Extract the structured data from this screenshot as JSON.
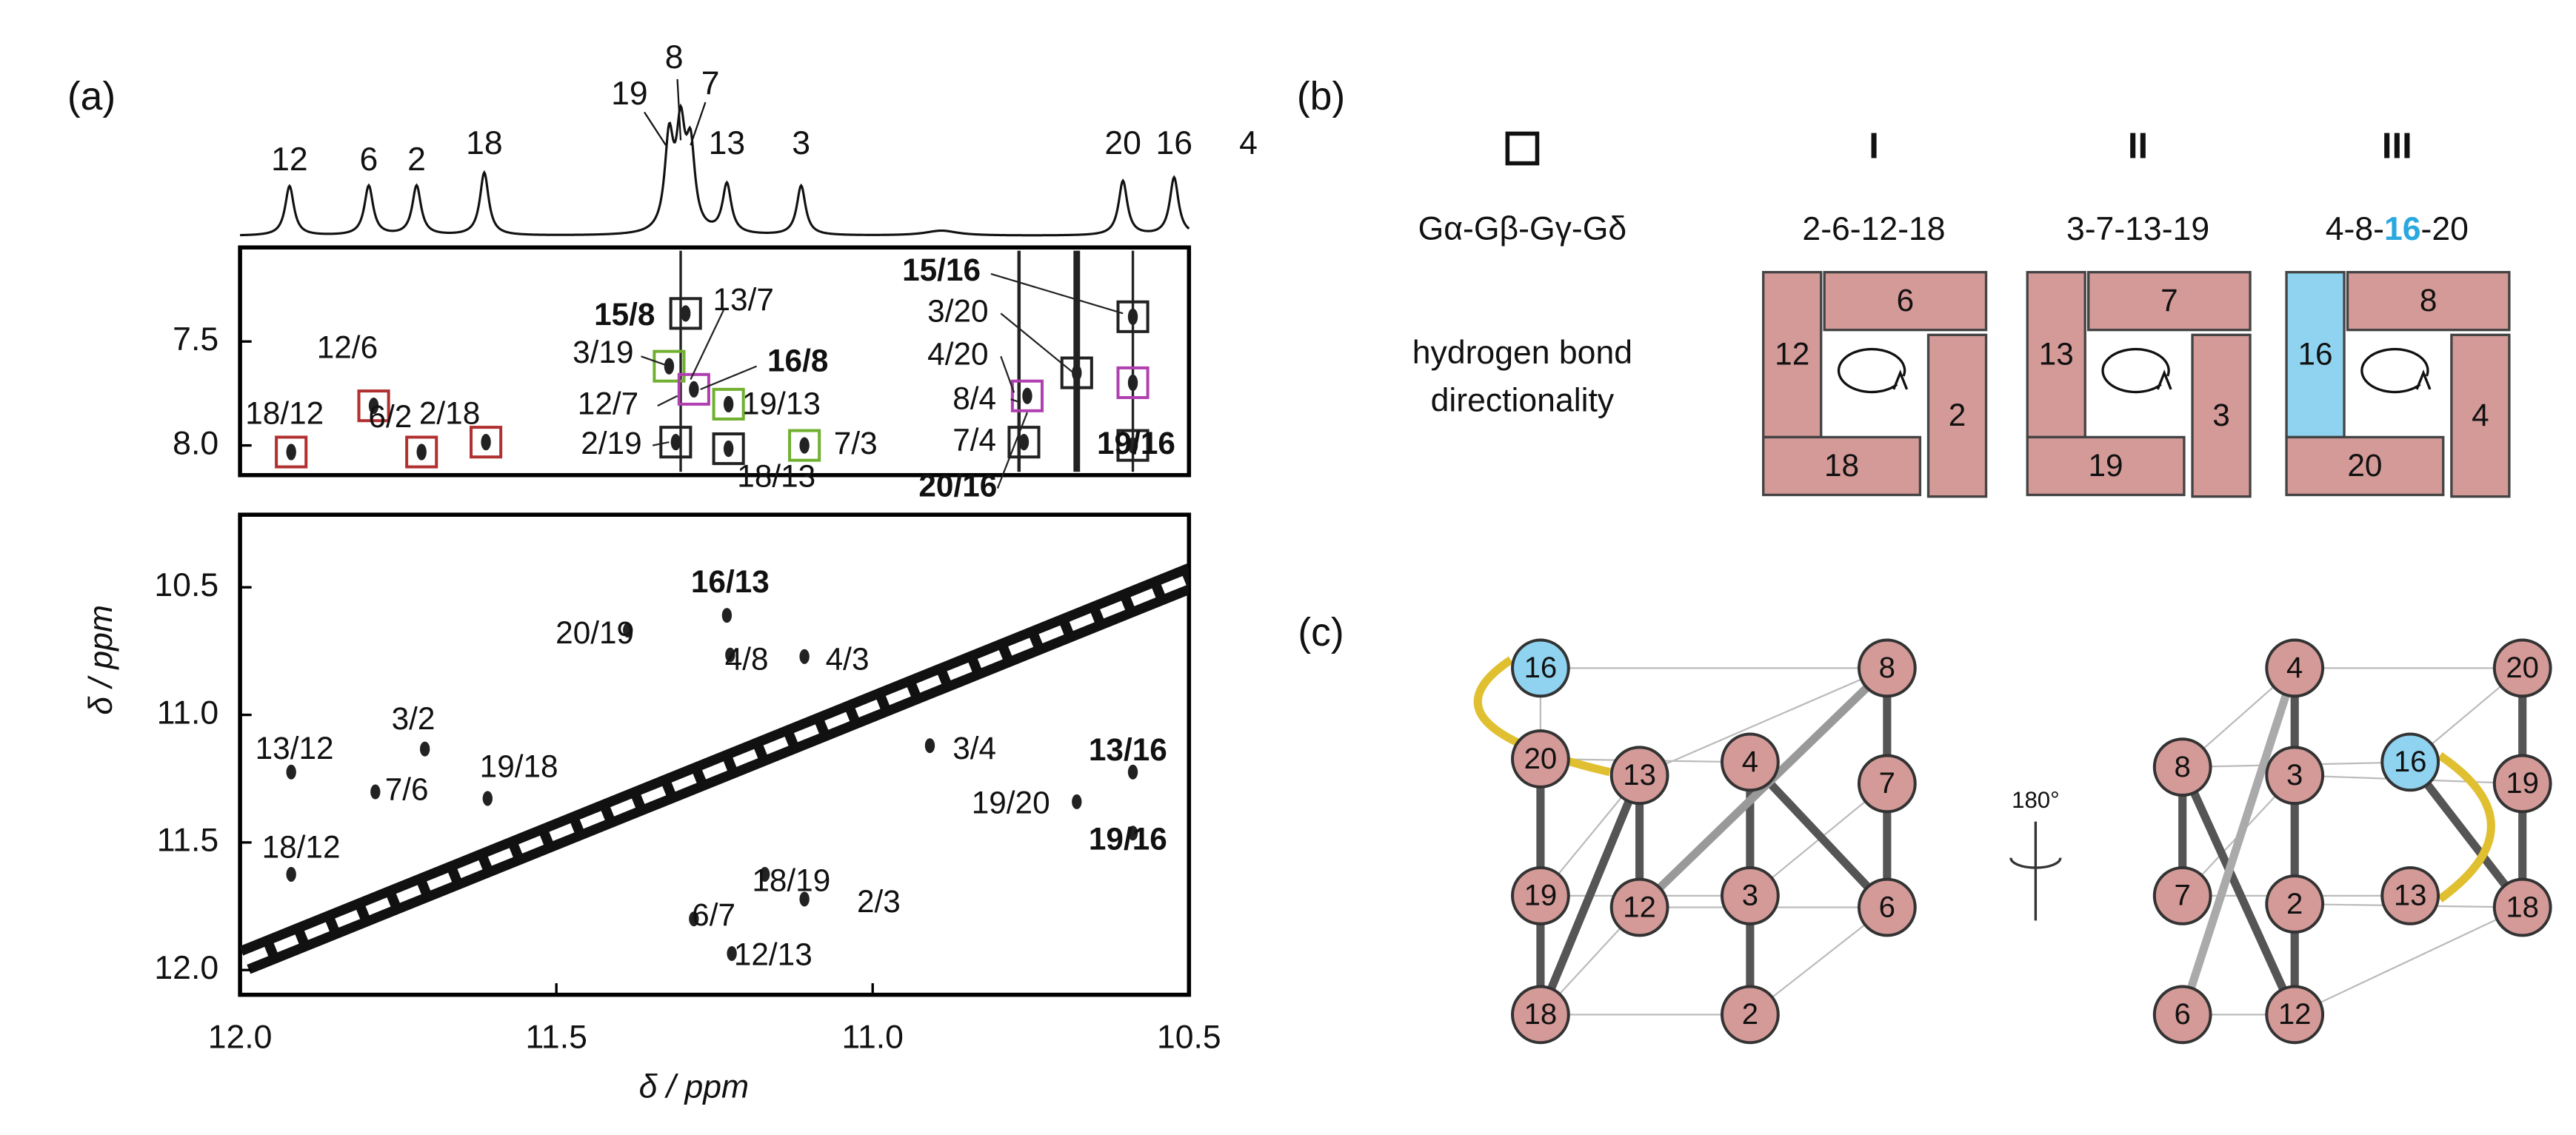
{
  "panels": {
    "a": {
      "label": "(a)",
      "spectrum_peaks": [
        "12",
        "6",
        "2",
        "18",
        "19",
        "8",
        "7",
        "13",
        "3",
        "4",
        "20",
        "16"
      ],
      "upper_yticks": [
        7.5,
        {
          "value": 8,
          "label": "8.0"
        }
      ],
      "lower_yticks": [
        10.5,
        {
          "value": 11,
          "label": "11.0"
        },
        11.5,
        {
          "value": 12,
          "label": "12.0"
        }
      ],
      "xticks": [
        {
          "value": 12,
          "label": "12.0"
        },
        11.5,
        {
          "value": 11,
          "label": "11.0"
        },
        10.5
      ],
      "y_axis_label": "δ / ppm",
      "x_axis_label": "δ / ppm",
      "cross_peaks_upper": [
        "18/12",
        "12/6",
        "6/2",
        "2/18",
        "3/19",
        "15/8",
        "13/7",
        "16/8",
        "12/7",
        "19/13",
        "2/19",
        "18/13",
        "7/3",
        "15/16",
        "3/20",
        "4/20",
        "8/4",
        "7/4",
        "20/16",
        "19/16"
      ],
      "cross_peaks_lower": [
        "16/13",
        "20/19",
        "4/8",
        "4/3",
        "3/2",
        "13/12",
        "7/6",
        "19/18",
        "18/12",
        "3/4",
        "13/16",
        "19/20",
        "19/16",
        "18/19",
        "2/3",
        "6/7",
        "12/13"
      ]
    },
    "b": {
      "label": "(b)",
      "legend_label": "Gα-Gβ-Gγ-Gδ",
      "directionality_label": [
        "hydrogen bond",
        "directionality"
      ],
      "groups": [
        {
          "numeral": "I",
          "sequence": [
            "2-6-12-18"
          ],
          "tiles": [
            "6",
            "12",
            "2",
            "18"
          ]
        },
        {
          "numeral": "II",
          "sequence": [
            "3-7-13-19"
          ],
          "tiles": [
            "7",
            "13",
            "3",
            "19"
          ]
        },
        {
          "numeral": "III",
          "sequence": [
            "4-8-",
            "16",
            "-20"
          ],
          "tiles": [
            "8",
            "16",
            "4",
            "20"
          ]
        }
      ]
    },
    "c": {
      "label": "(c)",
      "rotation": "180°",
      "left_nodes": [
        "16",
        "8",
        "20",
        "13",
        "4",
        "7",
        "19",
        "12",
        "3",
        "6",
        "18",
        "2"
      ],
      "right_nodes": [
        "4",
        "20",
        "8",
        "3",
        "16",
        "19",
        "7",
        "2",
        "13",
        "18",
        "6",
        "12"
      ]
    }
  }
}
